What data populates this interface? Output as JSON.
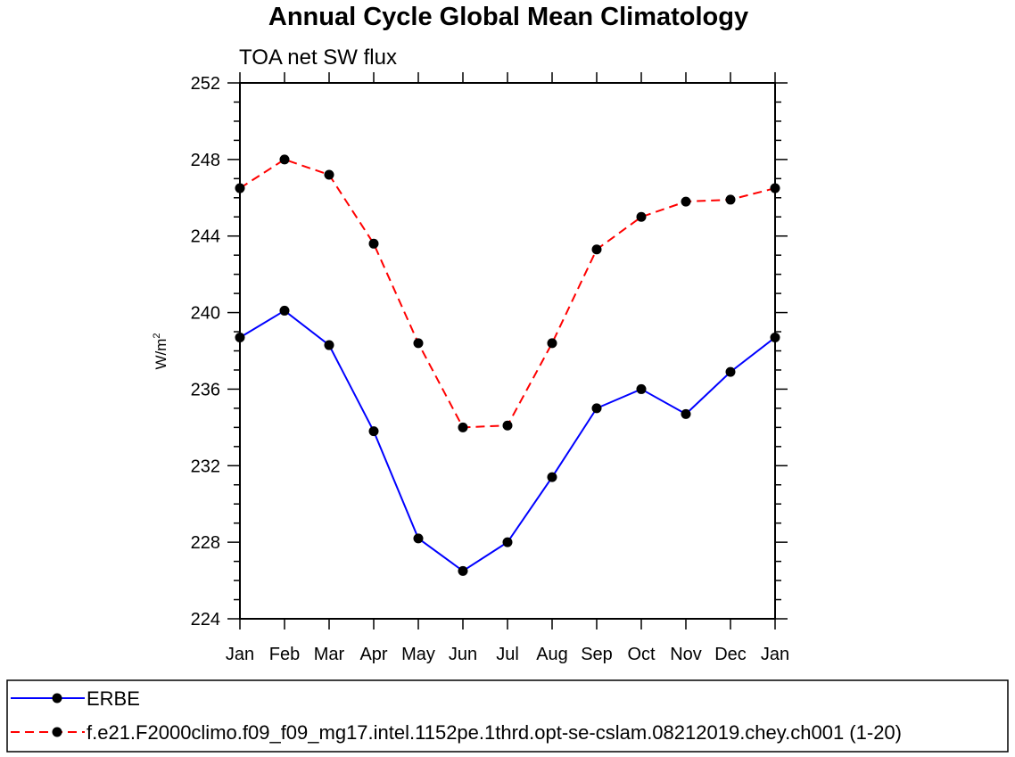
{
  "chart_data": {
    "type": "line",
    "title": "Annual Cycle Global Mean Climatology",
    "subtitle": "TOA net SW flux",
    "ylabel": "W/m",
    "ylabel_superscript": "2",
    "ylim": [
      224,
      252
    ],
    "y_ticks": [
      "224",
      "228",
      "232",
      "236",
      "240",
      "244",
      "248",
      "252"
    ],
    "categories": [
      "Jan",
      "Feb",
      "Mar",
      "Apr",
      "May",
      "Jun",
      "Jul",
      "Aug",
      "Sep",
      "Oct",
      "Nov",
      "Dec",
      "Jan"
    ],
    "series": [
      {
        "name": "ERBE",
        "color": "#0000ff",
        "dash": "solid",
        "values": [
          238.7,
          240.1,
          238.3,
          233.8,
          228.2,
          226.5,
          228.0,
          231.4,
          235.0,
          236.0,
          234.7,
          236.9,
          238.7
        ]
      },
      {
        "name": "f.e21.F2000climo.f09_f09_mg17.intel.1152pe.1thrd.opt-se-cslam.08212019.chey.ch001 (1-20)",
        "color": "#ff0000",
        "dash": "dashed",
        "values": [
          246.5,
          248.0,
          247.2,
          243.6,
          238.4,
          234.0,
          234.1,
          238.4,
          243.3,
          245.0,
          245.8,
          245.9,
          246.5
        ]
      }
    ],
    "grid": false,
    "legend": "bottom"
  }
}
